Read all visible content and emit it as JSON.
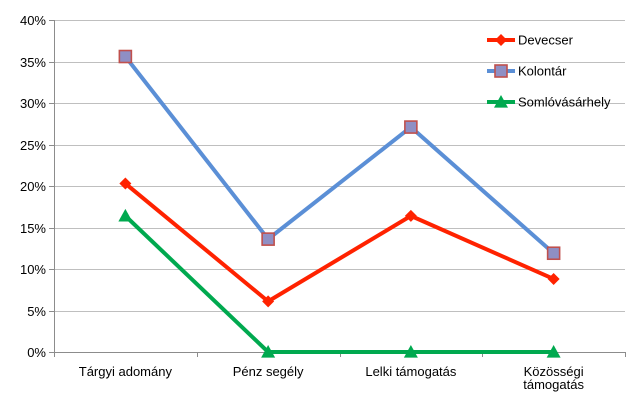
{
  "chart_data": {
    "type": "line",
    "categories": [
      "Tárgyi adomány",
      "Pénz segély",
      "Lelki támogatás",
      "Közösségi támogatás"
    ],
    "category_lines": [
      [
        "Tárgyi adomány"
      ],
      [
        "Pénz segély"
      ],
      [
        "Lelki támogatás"
      ],
      [
        "Közösségi",
        "támogatás"
      ]
    ],
    "series": [
      {
        "name": "Devecser",
        "color": "#ff2200",
        "marker": "diamond",
        "values": [
          20.3,
          6.1,
          16.4,
          8.8
        ]
      },
      {
        "name": "Kolontár",
        "color": "#5b8fd6",
        "marker": "square",
        "values": [
          35.6,
          13.6,
          27.1,
          11.9
        ]
      },
      {
        "name": "Somlóvásárhely",
        "color": "#00a94f",
        "marker": "triangle",
        "values": [
          16.4,
          0,
          0,
          0
        ]
      }
    ],
    "ylim": [
      0,
      40
    ],
    "y_ticks": [
      0,
      5,
      10,
      15,
      20,
      25,
      30,
      35,
      40
    ],
    "y_tick_labels": [
      "0%",
      "5%",
      "10%",
      "15%",
      "20%",
      "25%",
      "30%",
      "35%",
      "40%"
    ],
    "grid": "horizontal",
    "legend_position": "top-right",
    "title": "",
    "xlabel": "",
    "ylabel": ""
  }
}
